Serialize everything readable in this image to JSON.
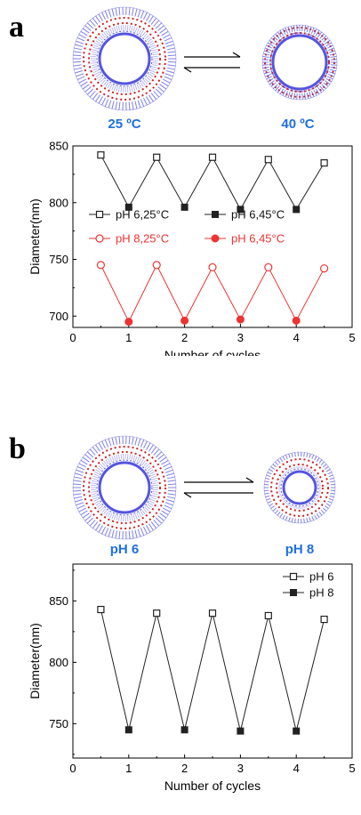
{
  "panels": {
    "a": {
      "letter": "a",
      "left_label": "25 ºC",
      "right_label": "40 ºC"
    },
    "b": {
      "letter": "b",
      "left_label": "pH 6",
      "right_label": "pH 8"
    }
  },
  "colors": {
    "black_series": "#222222",
    "red_series": "#ee3333",
    "label_blue": "#1f6fe0",
    "vesicle_blue": "#5555e0",
    "vesicle_red": "#cc2222"
  },
  "chart_data": [
    {
      "type": "line",
      "xlabel": "Number of cycles",
      "ylabel": "Diameter(nm)",
      "xlim": [
        0,
        5
      ],
      "ylim": [
        690,
        850
      ],
      "xticks": [
        0,
        1,
        2,
        3,
        4,
        5
      ],
      "yticks": [
        700,
        750,
        800,
        850
      ],
      "legend_placement": "middle",
      "series": [
        {
          "name": "pH 6,25°C",
          "color": "#222222",
          "marker": "open-square",
          "x": [
            0.5,
            1.5,
            2.5,
            3.5,
            4.5
          ],
          "y": [
            842,
            840,
            840,
            838,
            835
          ]
        },
        {
          "name": "pH 6,45°C",
          "color": "#222222",
          "marker": "filled-square",
          "x": [
            1,
            2,
            3,
            4
          ],
          "y": [
            796,
            796,
            794,
            794
          ]
        },
        {
          "name": "pH 8,25°C",
          "color": "#ee3333",
          "marker": "open-circle",
          "x": [
            0.5,
            1.5,
            2.5,
            3.5,
            4.5
          ],
          "y": [
            745,
            745,
            743,
            743,
            742
          ]
        },
        {
          "name": "pH 6,45°C",
          "color": "#ee3333",
          "marker": "filled-circle",
          "x": [
            1,
            2,
            3,
            4
          ],
          "y": [
            695,
            696,
            697,
            696
          ]
        }
      ],
      "connected_lines": [
        {
          "color": "#222222",
          "x": [
            0.5,
            1,
            1.5,
            2,
            2.5,
            3,
            3.5,
            4,
            4.5
          ],
          "y": [
            842,
            796,
            840,
            796,
            840,
            794,
            838,
            794,
            835
          ]
        },
        {
          "color": "#ee3333",
          "x": [
            0.5,
            1,
            1.5,
            2,
            2.5,
            3,
            3.5,
            4,
            4.5
          ],
          "y": [
            745,
            695,
            745,
            696,
            743,
            697,
            743,
            696,
            742
          ]
        }
      ]
    },
    {
      "type": "line",
      "xlabel": "Number of cycles",
      "ylabel": "Diameter(nm)",
      "xlim": [
        0,
        5
      ],
      "ylim": [
        722,
        880
      ],
      "xticks": [
        0,
        1,
        2,
        3,
        4,
        5
      ],
      "yticks": [
        750,
        800,
        850
      ],
      "legend_placement": "top-right",
      "series": [
        {
          "name": "pH 6",
          "color": "#222222",
          "marker": "open-square",
          "x": [
            0.5,
            1.5,
            2.5,
            3.5,
            4.5
          ],
          "y": [
            843,
            840,
            840,
            838,
            835
          ]
        },
        {
          "name": "pH 8",
          "color": "#222222",
          "marker": "filled-square",
          "x": [
            1,
            2,
            3,
            4
          ],
          "y": [
            745,
            745,
            744,
            744
          ]
        }
      ],
      "connected_lines": [
        {
          "color": "#222222",
          "x": [
            0.5,
            1,
            1.5,
            2,
            2.5,
            3,
            3.5,
            4,
            4.5
          ],
          "y": [
            843,
            745,
            840,
            745,
            840,
            744,
            838,
            744,
            835
          ]
        }
      ]
    }
  ]
}
